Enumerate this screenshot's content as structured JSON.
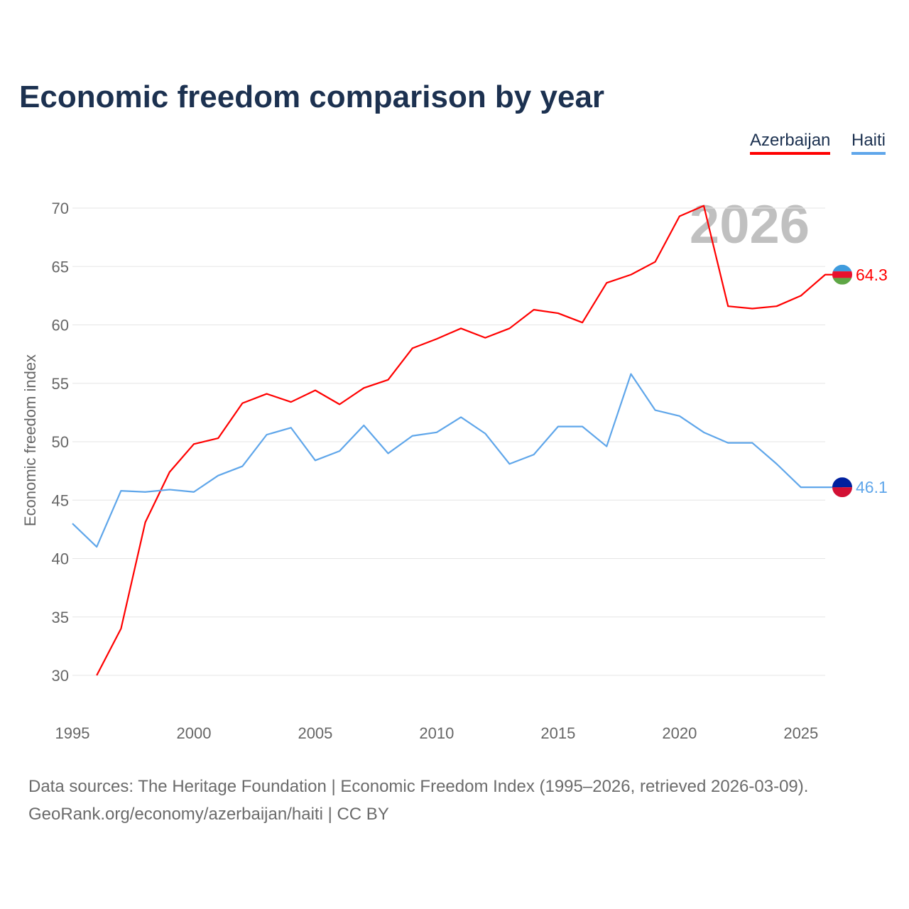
{
  "chart_data": {
    "type": "line",
    "title": "Economic freedom comparison by year",
    "ylabel": "Economic freedom index",
    "xlabel": "",
    "xlim": [
      1995,
      2026
    ],
    "ylim": [
      30,
      70
    ],
    "yticks": [
      30,
      35,
      40,
      45,
      50,
      55,
      60,
      65,
      70
    ],
    "xticks": [
      1995,
      2000,
      2005,
      2010,
      2015,
      2020,
      2025
    ],
    "grid": true,
    "legend_position": "top-right",
    "watermark_year": "2026",
    "series": [
      {
        "name": "Azerbaijan",
        "color": "#ff0000",
        "end_label": "64.3",
        "x": [
          1996,
          1997,
          1998,
          1999,
          2000,
          2001,
          2002,
          2003,
          2004,
          2005,
          2006,
          2007,
          2008,
          2009,
          2010,
          2011,
          2012,
          2013,
          2014,
          2015,
          2016,
          2017,
          2018,
          2019,
          2020,
          2021,
          2022,
          2023,
          2024,
          2025,
          2026
        ],
        "values": [
          30.0,
          34.0,
          43.1,
          47.4,
          49.8,
          50.3,
          53.3,
          54.1,
          53.4,
          54.4,
          53.2,
          54.6,
          55.3,
          58.0,
          58.8,
          59.7,
          58.9,
          59.7,
          61.3,
          61.0,
          60.2,
          63.6,
          64.3,
          65.4,
          69.3,
          70.2,
          61.6,
          61.4,
          61.6,
          62.5,
          64.3
        ]
      },
      {
        "name": "Haiti",
        "color": "#5fa6ea",
        "end_label": "46.1",
        "x": [
          1995,
          1996,
          1997,
          1998,
          1999,
          2000,
          2001,
          2002,
          2003,
          2004,
          2005,
          2006,
          2007,
          2008,
          2009,
          2010,
          2011,
          2012,
          2013,
          2014,
          2015,
          2016,
          2017,
          2018,
          2019,
          2020,
          2021,
          2022,
          2023,
          2024,
          2025,
          2026
        ],
        "values": [
          43.0,
          41.0,
          45.8,
          45.7,
          45.9,
          45.7,
          47.1,
          47.9,
          50.6,
          51.2,
          48.4,
          49.2,
          51.4,
          49.0,
          50.5,
          50.8,
          52.1,
          50.7,
          48.1,
          48.9,
          51.3,
          51.3,
          49.6,
          55.8,
          52.7,
          52.2,
          50.8,
          49.9,
          49.9,
          48.1,
          46.1,
          46.1
        ]
      }
    ]
  },
  "source_line1": "Data sources: The Heritage Foundation | Economic Freedom Index (1995–2026, retrieved 2026-03-09).",
  "source_line2": "GeoRank.org/economy/azerbaijan/haiti | CC BY"
}
